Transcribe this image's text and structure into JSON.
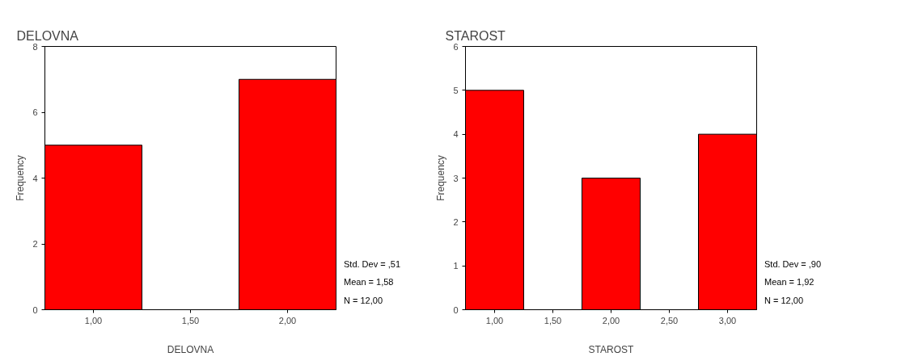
{
  "chart_data": [
    {
      "type": "histogram",
      "title": "DELOVNA",
      "xlabel": "DELOVNA",
      "ylabel": "Frequency",
      "bins": [
        0.75,
        1.25,
        1.75,
        2.25
      ],
      "values": [
        5,
        0,
        7
      ],
      "color": "#ff0000",
      "xlim": [
        0.75,
        2.25
      ],
      "xticks": [
        {
          "value": 1,
          "label": "1,00"
        },
        {
          "value": 1.5,
          "label": "1,50"
        },
        {
          "value": 2,
          "label": "2,00"
        }
      ],
      "ylim": [
        0,
        8
      ],
      "yticks": [
        0,
        2,
        4,
        6,
        8
      ],
      "grid": false,
      "annotations": [
        "Std. Dev = ,51",
        "Mean = 1,58",
        "N = 12,00"
      ]
    },
    {
      "type": "histogram",
      "title": "STAROST",
      "xlabel": "STAROST",
      "ylabel": "Frequency",
      "bins": [
        0.75,
        1.25,
        1.75,
        2.25,
        2.75,
        3.25
      ],
      "values": [
        5,
        0,
        3,
        0,
        4
      ],
      "color": "#ff0000",
      "xlim": [
        0.75,
        3.25
      ],
      "xticks": [
        {
          "value": 1,
          "label": "1,00"
        },
        {
          "value": 1.5,
          "label": "1,50"
        },
        {
          "value": 2,
          "label": "2,00"
        },
        {
          "value": 2.5,
          "label": "2,50"
        },
        {
          "value": 3,
          "label": "3,00"
        }
      ],
      "ylim": [
        0,
        6
      ],
      "yticks": [
        0,
        1,
        2,
        3,
        4,
        5,
        6
      ],
      "grid": false,
      "annotations": [
        "Std. Dev = ,90",
        "Mean = 1,92",
        "N = 12,00"
      ]
    }
  ]
}
